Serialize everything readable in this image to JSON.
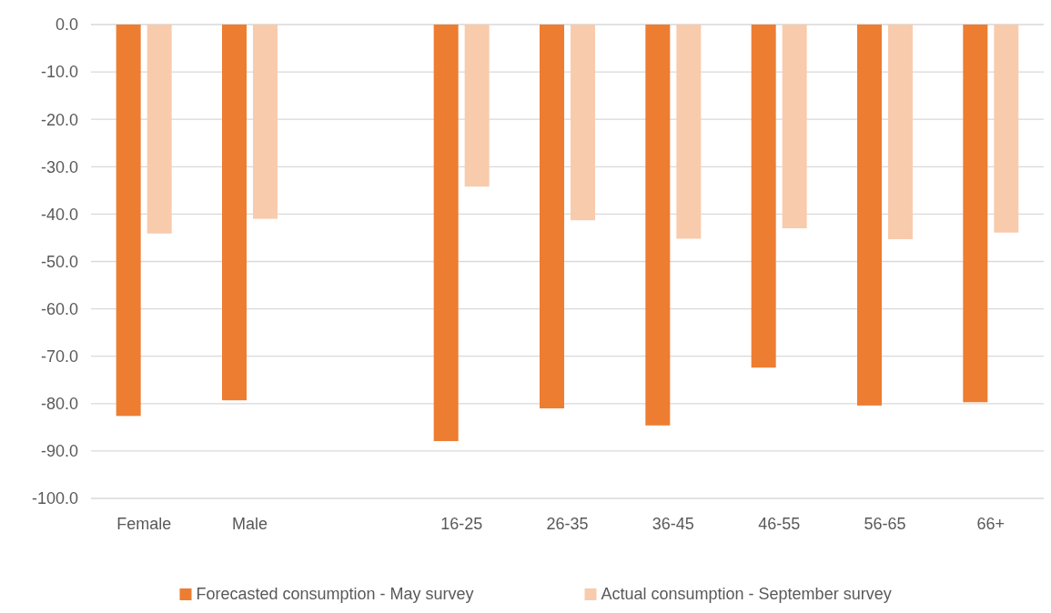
{
  "chart_data": {
    "type": "bar",
    "categories": [
      "Female",
      "Male",
      null,
      "16-25",
      "26-35",
      "36-45",
      "46-55",
      "56-65",
      "66+"
    ],
    "series": [
      {
        "name": "Forecasted consumption - May survey",
        "color": "#ed7d31",
        "values": [
          -82.6,
          -79.3,
          null,
          -87.9,
          -81.0,
          -84.6,
          -72.4,
          -80.4,
          -79.7
        ]
      },
      {
        "name": "Actual consumption - September survey",
        "color": "#f8cbad",
        "values": [
          -44.1,
          -41.0,
          null,
          -34.2,
          -41.3,
          -45.2,
          -43.0,
          -45.3,
          -43.9
        ]
      }
    ],
    "ylim": [
      -100,
      0
    ],
    "yticks": [
      {
        "value": 0,
        "label": "0.0"
      },
      {
        "value": -10,
        "label": "-10.0"
      },
      {
        "value": -20,
        "label": "-20.0"
      },
      {
        "value": -30,
        "label": "-30.0"
      },
      {
        "value": -40,
        "label": "-40.0"
      },
      {
        "value": -50,
        "label": "-50.0"
      },
      {
        "value": -60,
        "label": "-60.0"
      },
      {
        "value": -70,
        "label": "-70.0"
      },
      {
        "value": -80,
        "label": "-80.0"
      },
      {
        "value": -90,
        "label": "-90.0"
      },
      {
        "value": -100,
        "label": "-100.0"
      }
    ],
    "grid": "y",
    "legend": "bottom"
  }
}
